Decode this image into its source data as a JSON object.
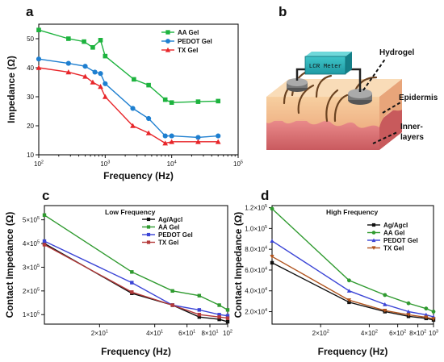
{
  "panels": {
    "a": "a",
    "b": "b",
    "c": "c",
    "d": "d"
  },
  "diagram": {
    "meter_label": "LCR Meter",
    "hydrogel_label": "Hydrogel",
    "epidermis_label": "Epidermis",
    "inner_label_line1": "Inner-",
    "inner_label_line2": "layers"
  },
  "chart_data": [
    {
      "id": "a",
      "type": "line",
      "xscale": "log",
      "xlim": [
        100,
        100000
      ],
      "ylim": [
        10,
        55
      ],
      "xlabel": "Frequency (Hz)",
      "ylabel": "Impedance (Ω)",
      "xticks": [
        100,
        1000,
        10000,
        100000
      ],
      "xtick_labels": [
        [
          "10",
          "2"
        ],
        [
          "10",
          "3"
        ],
        [
          "10",
          "4"
        ],
        [
          "10",
          "5"
        ]
      ],
      "yticks": [
        10,
        20,
        30,
        40,
        50
      ],
      "ytick_labels": [
        "10",
        "20",
        "30",
        "40",
        "50"
      ],
      "legend_position": "top-right",
      "series": [
        {
          "name": "AA Gel",
          "color": "#1db33e",
          "marker": "square",
          "x": [
            100,
            280,
            480,
            650,
            850,
            1000,
            2700,
            4500,
            8000,
            10000,
            25000,
            50000
          ],
          "y": [
            53,
            50,
            49,
            47,
            49.5,
            44,
            36,
            34,
            29,
            28,
            28.3,
            28.5
          ]
        },
        {
          "name": "PEDOT Gel",
          "color": "#1e7fd0",
          "marker": "circle",
          "x": [
            100,
            280,
            500,
            700,
            850,
            1000,
            2600,
            4500,
            8000,
            10000,
            25000,
            50000
          ],
          "y": [
            43,
            41.5,
            40.5,
            38.5,
            38,
            34.5,
            26,
            22.5,
            16.5,
            16.5,
            16,
            16.5
          ]
        },
        {
          "name": "TX Gel",
          "color": "#e8262a",
          "marker": "triangle",
          "x": [
            100,
            280,
            500,
            650,
            850,
            1000,
            2600,
            4500,
            8000,
            10000,
            25000,
            50000
          ],
          "y": [
            40,
            38.5,
            37,
            35,
            33.5,
            30,
            20,
            17.5,
            14,
            14.5,
            14.5,
            14.5
          ]
        }
      ]
    },
    {
      "id": "c",
      "type": "line",
      "xscale": "log",
      "xlim": [
        10,
        100
      ],
      "ylim": [
        60000,
        560000
      ],
      "title": "Low Frequency",
      "xlabel": "Frequency (Hz)",
      "ylabel": "Contact Impedance (Ω)",
      "xticks": [
        20,
        40,
        60,
        80,
        100
      ],
      "xtick_labels": [
        [
          "2×10",
          "1"
        ],
        [
          "4×10",
          "1"
        ],
        [
          "6×10",
          "1"
        ],
        [
          "8×10",
          "1"
        ],
        [
          "10",
          "2"
        ]
      ],
      "yticks": [
        100000,
        200000,
        300000,
        400000,
        500000
      ],
      "ytick_labels": [
        [
          "1×10",
          "5"
        ],
        [
          "2×10",
          "5"
        ],
        [
          "3×10",
          "5"
        ],
        [
          "4×10",
          "5"
        ],
        [
          "5×10",
          "5"
        ]
      ],
      "legend_position": "top-right",
      "series": [
        {
          "name": "Ag/Agcl",
          "color": "#111111",
          "marker": "square",
          "x": [
            10,
            30,
            50,
            70,
            90,
            100
          ],
          "y": [
            400000,
            190000,
            140000,
            90000,
            80000,
            70000
          ]
        },
        {
          "name": "AA Gel",
          "color": "#2f9a2f",
          "marker": "square",
          "x": [
            10,
            30,
            50,
            70,
            90,
            100
          ],
          "y": [
            520000,
            280000,
            200000,
            180000,
            140000,
            120000
          ]
        },
        {
          "name": "PEDOT Gel",
          "color": "#3b45d6",
          "marker": "square",
          "x": [
            10,
            30,
            50,
            70,
            90,
            100
          ],
          "y": [
            410000,
            235000,
            140000,
            120000,
            100000,
            95000
          ]
        },
        {
          "name": "TX Gel",
          "color": "#b43a3a",
          "marker": "square",
          "x": [
            10,
            30,
            50,
            70,
            90,
            100
          ],
          "y": [
            395000,
            195000,
            140000,
            100000,
            90000,
            85000
          ]
        }
      ]
    },
    {
      "id": "d",
      "type": "line",
      "xscale": "log",
      "xlim": [
        100,
        1000
      ],
      "ylim": [
        8000,
        122000
      ],
      "title": "High Frequency",
      "xlabel": "Frequency (Hz)",
      "ylabel": "Contact Impedance (Ω)",
      "xticks": [
        200,
        400,
        600,
        800,
        1000
      ],
      "xtick_labels": [
        [
          "2×10",
          "2"
        ],
        [
          "4×10",
          "2"
        ],
        [
          "6×10",
          "2"
        ],
        [
          "8×10",
          "2"
        ],
        [
          "10",
          "3"
        ]
      ],
      "yticks": [
        20000,
        40000,
        60000,
        80000,
        100000,
        120000
      ],
      "ytick_labels": [
        [
          "2.0×10",
          "4"
        ],
        [
          "4.0×10",
          "4"
        ],
        [
          "6.0×10",
          "4"
        ],
        [
          "8.0×10",
          "4"
        ],
        [
          "1.0×10",
          "5"
        ],
        [
          "1.2×10",
          "5"
        ]
      ],
      "legend_position": "top-right",
      "series": [
        {
          "name": "Ag/AgcI",
          "color": "#111111",
          "marker": "square",
          "x": [
            100,
            300,
            500,
            700,
            900,
            1000
          ],
          "y": [
            67000,
            29000,
            20000,
            15500,
            13500,
            12000
          ]
        },
        {
          "name": "AA Gel",
          "color": "#2f9a2f",
          "marker": "circle",
          "x": [
            100,
            300,
            500,
            700,
            900,
            1000
          ],
          "y": [
            119000,
            50000,
            36000,
            28000,
            23000,
            20000
          ]
        },
        {
          "name": "PEDOT Gel",
          "color": "#3b45d6",
          "marker": "triangle",
          "x": [
            100,
            300,
            500,
            700,
            900,
            1000
          ],
          "y": [
            88000,
            40000,
            27000,
            20000,
            17000,
            15000
          ]
        },
        {
          "name": "TX Gel",
          "color": "#b0541e",
          "marker": "triangle-down",
          "x": [
            100,
            300,
            500,
            700,
            900,
            1000
          ],
          "y": [
            73000,
            31000,
            21000,
            17000,
            14500,
            13000
          ]
        }
      ]
    }
  ]
}
